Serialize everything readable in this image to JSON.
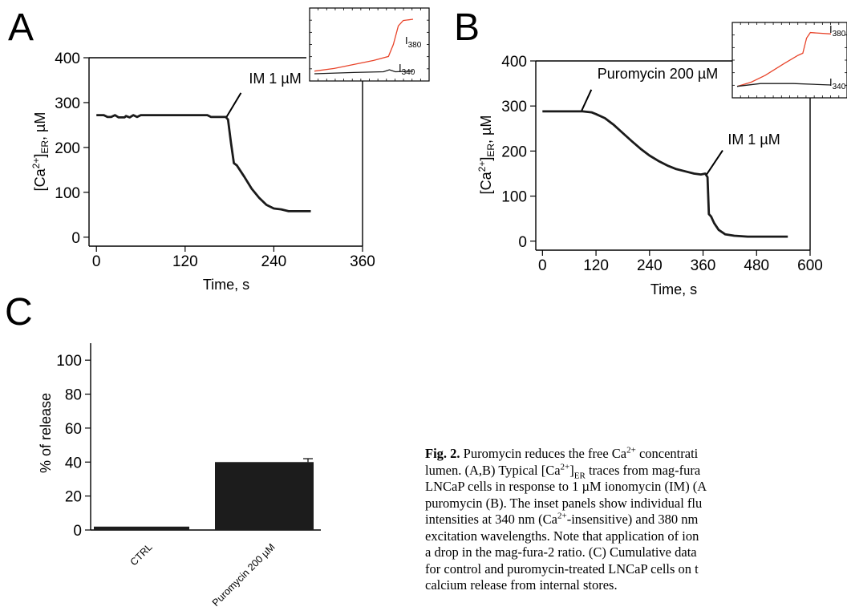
{
  "chart_data": [
    {
      "panel_label": "A",
      "type": "line",
      "xlabel": "Time, s",
      "ylabel_main": "[Ca",
      "ylabel_sup": "2+",
      "ylabel_close": "]",
      "ylabel_sub": "ER",
      "ylabel_unit": ", µM",
      "xlim": [
        -10,
        360
      ],
      "ylim": [
        -20,
        400
      ],
      "xticks": [
        0,
        120,
        240,
        360
      ],
      "yticks": [
        0,
        100,
        200,
        300,
        400
      ],
      "series": [
        {
          "color": "#1a1a1a",
          "points": [
            [
              0,
              272
            ],
            [
              10,
              272
            ],
            [
              15,
              268
            ],
            [
              20,
              268
            ],
            [
              25,
              272
            ],
            [
              30,
              267
            ],
            [
              38,
              267
            ],
            [
              40,
              270
            ],
            [
              45,
              267
            ],
            [
              50,
              272
            ],
            [
              55,
              268
            ],
            [
              60,
              272
            ],
            [
              100,
              272
            ],
            [
              150,
              272
            ],
            [
              155,
              268
            ],
            [
              175,
              268
            ],
            [
              178,
              262
            ],
            [
              182,
              210
            ],
            [
              186,
              165
            ],
            [
              190,
              160
            ],
            [
              200,
              135
            ],
            [
              210,
              108
            ],
            [
              220,
              88
            ],
            [
              230,
              72
            ],
            [
              240,
              64
            ],
            [
              250,
              62
            ],
            [
              260,
              58
            ],
            [
              270,
              58
            ],
            [
              280,
              58
            ],
            [
              290,
              58
            ]
          ]
        }
      ],
      "annotations": [
        {
          "text": "IM 1 µM",
          "at": [
            176,
            268
          ]
        }
      ],
      "inset": {
        "labels": [
          "I380",
          "I340"
        ],
        "series": [
          {
            "name": "I380",
            "color": "#e8442a",
            "points": [
              [
                0,
                0.1
              ],
              [
                20,
                0.14
              ],
              [
                40,
                0.2
              ],
              [
                60,
                0.26
              ],
              [
                75,
                0.32
              ],
              [
                80,
                0.5
              ],
              [
                85,
                0.78
              ],
              [
                90,
                0.86
              ],
              [
                100,
                0.88
              ]
            ]
          },
          {
            "name": "I340",
            "color": "#1a1a1a",
            "points": [
              [
                0,
                0.06
              ],
              [
                40,
                0.08
              ],
              [
                70,
                0.09
              ],
              [
                76,
                0.12
              ],
              [
                82,
                0.09
              ],
              [
                100,
                0.1
              ]
            ]
          }
        ]
      }
    },
    {
      "panel_label": "B",
      "type": "line",
      "xlabel": "Time, s",
      "ylabel_main": "[Ca",
      "ylabel_sup": "2+",
      "ylabel_close": "]",
      "ylabel_sub": "ER",
      "ylabel_unit": ", µM",
      "xlim": [
        -15,
        600
      ],
      "ylim": [
        -20,
        400
      ],
      "xticks": [
        0,
        120,
        240,
        360,
        480,
        600
      ],
      "yticks": [
        0,
        100,
        200,
        300,
        400
      ],
      "series": [
        {
          "color": "#1a1a1a",
          "points": [
            [
              0,
              288
            ],
            [
              60,
              288
            ],
            [
              90,
              288
            ],
            [
              110,
              286
            ],
            [
              120,
              282
            ],
            [
              140,
              273
            ],
            [
              160,
              258
            ],
            [
              180,
              240
            ],
            [
              200,
              222
            ],
            [
              220,
              205
            ],
            [
              240,
              190
            ],
            [
              260,
              178
            ],
            [
              280,
              168
            ],
            [
              300,
              160
            ],
            [
              320,
              155
            ],
            [
              340,
              150
            ],
            [
              355,
              148
            ],
            [
              365,
              150
            ],
            [
              370,
              142
            ],
            [
              373,
              60
            ],
            [
              378,
              55
            ],
            [
              385,
              40
            ],
            [
              395,
              25
            ],
            [
              410,
              15
            ],
            [
              430,
              12
            ],
            [
              460,
              10
            ],
            [
              500,
              10
            ],
            [
              550,
              10
            ]
          ]
        }
      ],
      "annotations": [
        {
          "text": "Puromycin 200 µM",
          "at": [
            88,
            290
          ]
        },
        {
          "text": "IM 1 µM",
          "at": [
            368,
            148
          ]
        }
      ],
      "inset": {
        "labels": [
          "I380",
          "I340"
        ],
        "series": [
          {
            "name": "I380",
            "color": "#e8442a",
            "points": [
              [
                0,
                0.12
              ],
              [
                15,
                0.18
              ],
              [
                30,
                0.28
              ],
              [
                50,
                0.45
              ],
              [
                65,
                0.57
              ],
              [
                70,
                0.6
              ],
              [
                74,
                0.82
              ],
              [
                78,
                0.9
              ],
              [
                100,
                0.88
              ]
            ]
          },
          {
            "name": "I340",
            "color": "#1a1a1a",
            "points": [
              [
                0,
                0.12
              ],
              [
                25,
                0.16
              ],
              [
                60,
                0.16
              ],
              [
                100,
                0.14
              ]
            ]
          }
        ]
      }
    },
    {
      "panel_label": "C",
      "type": "bar",
      "ylabel": "% of release",
      "ylim": [
        0,
        110
      ],
      "yticks": [
        0,
        20,
        40,
        60,
        80,
        100
      ],
      "categories": [
        "CTRL",
        "Puromycin 200 µM"
      ],
      "values": [
        2,
        40
      ],
      "errors": [
        0,
        2
      ],
      "bar_color": "#1c1c1c"
    }
  ],
  "caption": {
    "fig_label": "Fig. 2.",
    "lines": [
      " Puromycin reduces the free Ca<sup>2+</sup> concentrati",
      "lumen. (A,B) Typical [Ca<sup>2+</sup>]<sub>ER</sub> traces from mag-fura",
      "LNCaP cells in response to 1 µM ionomycin (IM) (A",
      "puromycin (B). The inset panels show individual flu",
      "intensities at 340 nm (Ca<sup>2+</sup>-insensitive) and 380 nm",
      "excitation wavelengths. Note that application of ion",
      "a drop in the mag-fura-2 ratio. (C) Cumulative data",
      "for control and puromycin-treated LNCaP cells on t",
      "calcium release from internal stores."
    ]
  }
}
